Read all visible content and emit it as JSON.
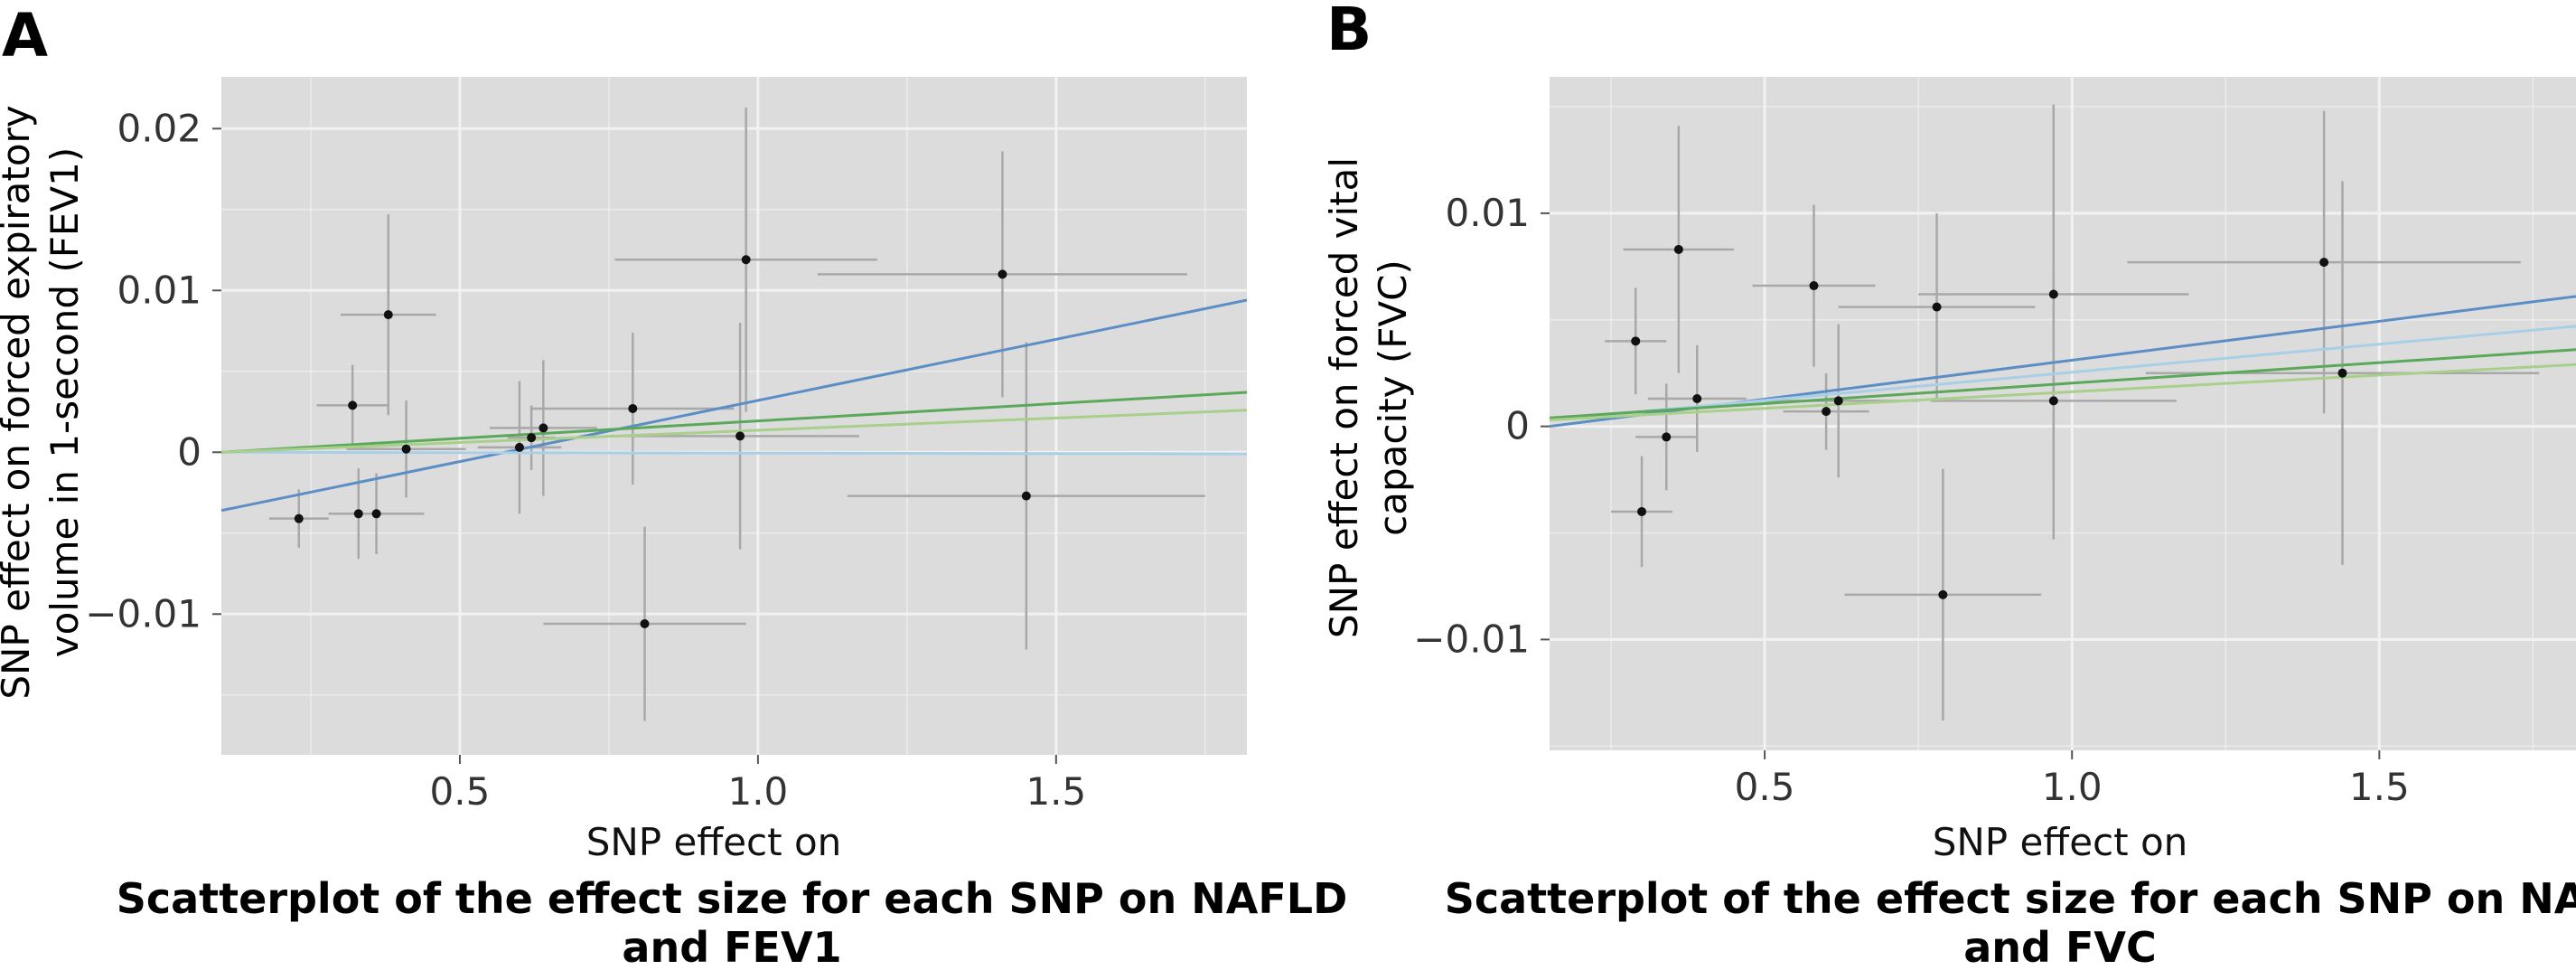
{
  "colors": {
    "panel_bg": "#dcdcdc",
    "grid": "#f2f2f2",
    "error_bar": "#a8a8a8",
    "point": "#111111",
    "line_dark_blue": "#5b8ec4",
    "line_light_blue": "#a9cfe6",
    "line_dark_green": "#5aa85a",
    "line_light_green": "#a9d08a"
  },
  "chart_data": [
    {
      "type": "scatter",
      "panel_label": "A",
      "title": "",
      "xlabel": "SNP effect on",
      "ylabel_lines": [
        "SNP effect on forced expiratory",
        "volume in 1-second (FEV1)"
      ],
      "caption_lines": [
        "Scatterplot of the effect size for each SNP on NAFLD",
        "and FEV1"
      ],
      "xlim": [
        0.1,
        1.82
      ],
      "ylim": [
        -0.0187,
        0.0232
      ],
      "x_ticks": [
        0.5,
        1.0,
        1.5
      ],
      "x_tick_labels": [
        "0.5",
        "1.0",
        "1.5"
      ],
      "y_ticks": [
        -0.01,
        0,
        0.01,
        0.02
      ],
      "y_tick_labels": [
        "−0.01",
        "0",
        "0.01",
        "0.02"
      ],
      "grid": true,
      "points": [
        {
          "x": 0.23,
          "y": -0.0041,
          "xerr": 0.05,
          "yerr": 0.0018
        },
        {
          "x": 0.32,
          "y": 0.0029,
          "xerr": 0.06,
          "yerr": 0.0025
        },
        {
          "x": 0.33,
          "y": -0.0038,
          "xerr": 0.05,
          "yerr": 0.0028
        },
        {
          "x": 0.36,
          "y": -0.0038,
          "xerr": 0.08,
          "yerr": 0.0025
        },
        {
          "x": 0.38,
          "y": 0.0085,
          "xerr": 0.08,
          "yerr": 0.0062
        },
        {
          "x": 0.41,
          "y": 0.0002,
          "xerr": 0.1,
          "yerr": 0.003
        },
        {
          "x": 0.6,
          "y": 0.0003,
          "xerr": 0.07,
          "yerr": 0.0041
        },
        {
          "x": 0.62,
          "y": 0.0009,
          "xerr": 0.04,
          "yerr": 0.002
        },
        {
          "x": 0.64,
          "y": 0.0015,
          "xerr": 0.09,
          "yerr": 0.0042
        },
        {
          "x": 0.79,
          "y": 0.0027,
          "xerr": 0.17,
          "yerr": 0.0047
        },
        {
          "x": 0.81,
          "y": -0.0106,
          "xerr": 0.17,
          "yerr": 0.006
        },
        {
          "x": 0.97,
          "y": 0.001,
          "xerr": 0.2,
          "yerr": 0.007
        },
        {
          "x": 0.98,
          "y": 0.0119,
          "xerr": 0.22,
          "yerr": 0.0094
        },
        {
          "x": 1.41,
          "y": 0.011,
          "xerr": 0.31,
          "yerr": 0.0076
        },
        {
          "x": 1.45,
          "y": -0.0027,
          "xerr": 0.3,
          "yerr": 0.0095
        }
      ],
      "lines": [
        {
          "color": "#5b8ec4",
          "x": [
            0.1,
            1.82
          ],
          "y": [
            -0.0036,
            0.0094
          ]
        },
        {
          "color": "#a9cfe6",
          "x": [
            0.1,
            1.82
          ],
          "y": [
            0.0,
            -0.0001
          ]
        },
        {
          "color": "#5aa85a",
          "x": [
            0.1,
            1.82
          ],
          "y": [
            0.0,
            0.0037
          ]
        },
        {
          "color": "#a9d08a",
          "x": [
            0.1,
            1.82
          ],
          "y": [
            0.0,
            0.0026
          ]
        }
      ]
    },
    {
      "type": "scatter",
      "panel_label": "B",
      "title": "",
      "xlabel": "SNP effect on",
      "ylabel_lines": [
        "SNP effect on forced vital",
        "capacity (FVC)"
      ],
      "caption_lines": [
        "Scatterplot of the effect size for each SNP on NAFLD",
        "and FVC"
      ],
      "xlim": [
        0.15,
        1.82
      ],
      "ylim": [
        -0.0152,
        0.0164
      ],
      "x_ticks": [
        0.5,
        1.0,
        1.5
      ],
      "x_tick_labels": [
        "0.5",
        "1.0",
        "1.5"
      ],
      "y_ticks": [
        -0.01,
        0,
        0.01
      ],
      "y_tick_labels": [
        "−0.01",
        "0",
        "0.01"
      ],
      "grid": true,
      "points": [
        {
          "x": 0.29,
          "y": 0.004,
          "xerr": 0.05,
          "yerr": 0.0025
        },
        {
          "x": 0.3,
          "y": -0.004,
          "xerr": 0.05,
          "yerr": 0.0026
        },
        {
          "x": 0.34,
          "y": -0.0005,
          "xerr": 0.05,
          "yerr": 0.0025
        },
        {
          "x": 0.36,
          "y": 0.0083,
          "xerr": 0.09,
          "yerr": 0.0058
        },
        {
          "x": 0.39,
          "y": 0.0013,
          "xerr": 0.08,
          "yerr": 0.0025
        },
        {
          "x": 0.58,
          "y": 0.0066,
          "xerr": 0.1,
          "yerr": 0.0038
        },
        {
          "x": 0.6,
          "y": 0.0007,
          "xerr": 0.07,
          "yerr": 0.0018
        },
        {
          "x": 0.62,
          "y": 0.0012,
          "xerr": 0.13,
          "yerr": 0.0036
        },
        {
          "x": 0.78,
          "y": 0.0056,
          "xerr": 0.16,
          "yerr": 0.0044
        },
        {
          "x": 0.79,
          "y": -0.0079,
          "xerr": 0.16,
          "yerr": 0.0059
        },
        {
          "x": 0.97,
          "y": 0.0012,
          "xerr": 0.2,
          "yerr": 0.0065
        },
        {
          "x": 0.97,
          "y": 0.0062,
          "xerr": 0.22,
          "yerr": 0.0089
        },
        {
          "x": 1.41,
          "y": 0.0077,
          "xerr": 0.32,
          "yerr": 0.0071
        },
        {
          "x": 1.44,
          "y": 0.0025,
          "xerr": 0.32,
          "yerr": 0.009
        }
      ],
      "lines": [
        {
          "color": "#5b8ec4",
          "x": [
            0.15,
            1.82
          ],
          "y": [
            0.0,
            0.0061
          ]
        },
        {
          "color": "#a9cfe6",
          "x": [
            0.15,
            1.82
          ],
          "y": [
            0.0003,
            0.0047
          ]
        },
        {
          "color": "#5aa85a",
          "x": [
            0.15,
            1.82
          ],
          "y": [
            0.0004,
            0.0036
          ]
        },
        {
          "color": "#a9d08a",
          "x": [
            0.15,
            1.82
          ],
          "y": [
            0.0003,
            0.0029
          ]
        }
      ]
    }
  ]
}
